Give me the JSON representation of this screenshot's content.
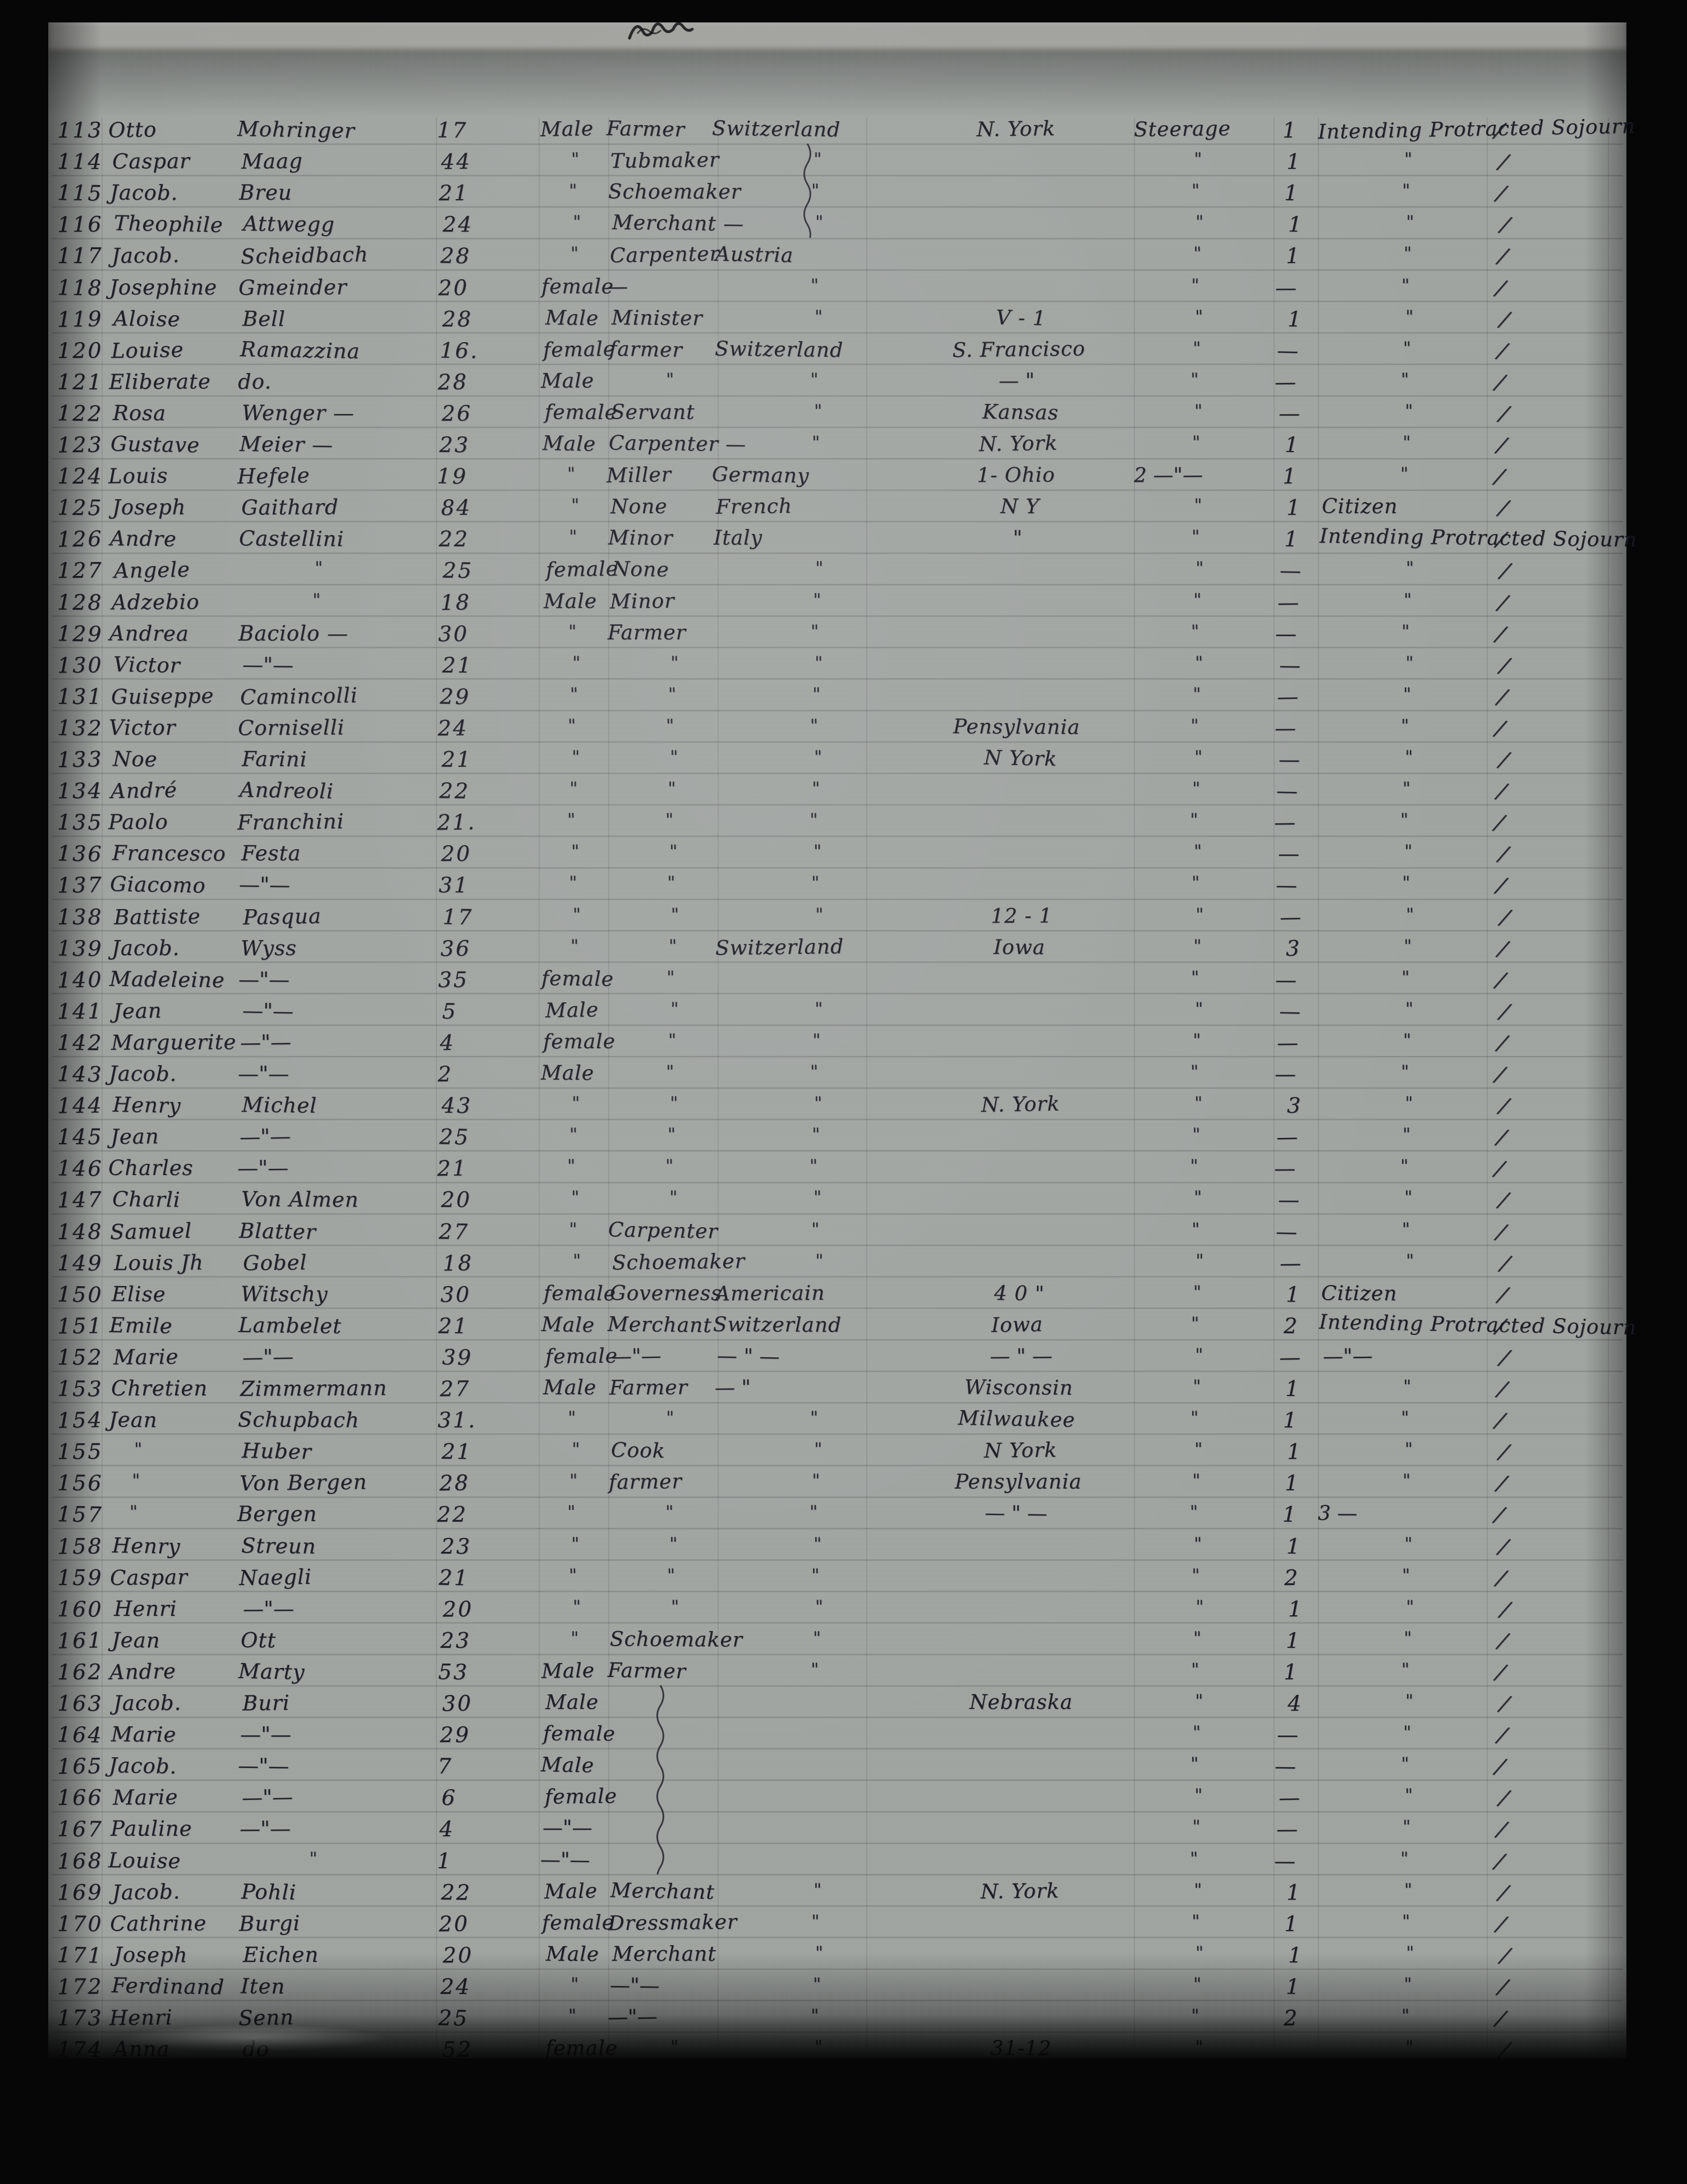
{
  "colors": {
    "ink": "#23232a",
    "paper": "#a0a5a2",
    "film": "#060607",
    "edge_strip": "#e8e9e3"
  },
  "manifest": {
    "note_bottom": "31-12",
    "braces": [
      {
        "from": 114,
        "to": 116
      },
      {
        "from": 163,
        "to": 168
      }
    ],
    "rows": [
      {
        "no": "113",
        "given": "Otto",
        "surname": "Mohringer",
        "age": "17",
        "sex": "Male",
        "occ": "Farmer",
        "country": "Switzerland",
        "dest": "N. York",
        "cls": "Steerage",
        "cnt": "1",
        "remark": "Intending Protracted Sojourn",
        "tick": true
      },
      {
        "no": "114",
        "given": "Caspar",
        "surname": "Maag",
        "age": "44",
        "sex": "\"",
        "occ": "Tubmaker",
        "country": "\"",
        "dest": "",
        "cls": "\"",
        "cnt": "1",
        "remark": "\"",
        "tick": true
      },
      {
        "no": "115",
        "given": "Jacob.",
        "surname": "Breu",
        "age": "21",
        "sex": "\"",
        "occ": "Schoemaker",
        "country": "\"",
        "dest": "",
        "cls": "\"",
        "cnt": "1",
        "remark": "\"",
        "tick": true
      },
      {
        "no": "116",
        "given": "Theophile",
        "surname": "Attwegg",
        "age": "24",
        "sex": "\"",
        "occ": "Merchant —",
        "country": "\"",
        "dest": "",
        "cls": "\"",
        "cnt": "1",
        "remark": "\"",
        "tick": true
      },
      {
        "no": "117",
        "given": "Jacob.",
        "surname": "Scheidbach",
        "age": "28",
        "sex": "\"",
        "occ": "Carpenter",
        "country": "Austria",
        "dest": "",
        "cls": "\"",
        "cnt": "1",
        "remark": "\"",
        "tick": true
      },
      {
        "no": "118",
        "given": "Josephine",
        "surname": "Gmeinder",
        "age": "20",
        "sex": "female",
        "occ": "—",
        "country": "\"",
        "dest": "",
        "cls": "\"",
        "cnt": "—",
        "remark": "\"",
        "tick": true
      },
      {
        "no": "119",
        "given": "Aloise",
        "surname": "Bell",
        "age": "28",
        "sex": "Male",
        "occ": "Minister",
        "country": "\"",
        "dest": "V - 1",
        "cls": "\"",
        "cnt": "1",
        "remark": "\"",
        "tick": true
      },
      {
        "no": "120",
        "given": "Louise",
        "surname": "Ramazzina",
        "age": "16.",
        "sex": "female",
        "occ": "farmer",
        "country": "Switzerland",
        "dest": "S. Francisco",
        "cls": "\"",
        "cnt": "—",
        "remark": "\"",
        "tick": true
      },
      {
        "no": "121",
        "given": "Eliberate",
        "surname": "do.",
        "age": "28",
        "sex": "Male",
        "occ": "\"",
        "country": "\"",
        "dest": "— \"",
        "cls": "\"",
        "cnt": "—",
        "remark": "\"",
        "tick": true
      },
      {
        "no": "122",
        "given": "Rosa",
        "surname": "Wenger —",
        "age": "26",
        "sex": "female",
        "occ": "Servant",
        "country": "\"",
        "dest": "Kansas",
        "cls": "\"",
        "cnt": "—",
        "remark": "\"",
        "tick": true
      },
      {
        "no": "123",
        "given": "Gustave",
        "surname": "Meier —",
        "age": "23",
        "sex": "Male",
        "occ": "Carpenter —",
        "country": "\"",
        "dest": "N. York",
        "cls": "\"",
        "cnt": "1",
        "remark": "\"",
        "tick": true
      },
      {
        "no": "124",
        "given": "Louis",
        "surname": "Hefele",
        "age": "19",
        "sex": "\"",
        "occ": "Miller",
        "country": "Germany",
        "dest": "1- Ohio",
        "cls": "2 —\"—",
        "cnt": "1",
        "remark": "\"",
        "tick": true
      },
      {
        "no": "125",
        "given": "Joseph",
        "surname": "Gaithard",
        "age": "84",
        "sex": "\"",
        "occ": "None",
        "country": "French",
        "dest": "N Y",
        "cls": "\"",
        "cnt": "1",
        "remark": "Citizen",
        "tick": true
      },
      {
        "no": "126",
        "given": "Andre",
        "surname": "Castellini",
        "age": "22",
        "sex": "\"",
        "occ": "Minor",
        "country": "Italy",
        "dest": "\"",
        "cls": "\"",
        "cnt": "1",
        "remark": "Intending Protracted Sojourn",
        "tick": true
      },
      {
        "no": "127",
        "given": "Angele",
        "surname": "\"",
        "age": "25",
        "sex": "female",
        "occ": "None",
        "country": "\"",
        "dest": "",
        "cls": "\"",
        "cnt": "—",
        "remark": "\"",
        "tick": true
      },
      {
        "no": "128",
        "given": "Adzebio",
        "surname": "\"",
        "age": "18",
        "sex": "Male",
        "occ": "Minor",
        "country": "\"",
        "dest": "",
        "cls": "\"",
        "cnt": "—",
        "remark": "\"",
        "tick": true
      },
      {
        "no": "129",
        "given": "Andrea",
        "surname": "Baciolo —",
        "age": "30",
        "sex": "\"",
        "occ": "Farmer",
        "country": "\"",
        "dest": "",
        "cls": "\"",
        "cnt": "—",
        "remark": "\"",
        "tick": true
      },
      {
        "no": "130",
        "given": "Victor",
        "surname": "—\"—",
        "age": "21",
        "sex": "\"",
        "occ": "\"",
        "country": "\"",
        "dest": "",
        "cls": "\"",
        "cnt": "—",
        "remark": "\"",
        "tick": true
      },
      {
        "no": "131",
        "given": "Guiseppe",
        "surname": "Camincolli",
        "age": "29",
        "sex": "\"",
        "occ": "\"",
        "country": "\"",
        "dest": "",
        "cls": "\"",
        "cnt": "—",
        "remark": "\"",
        "tick": true
      },
      {
        "no": "132",
        "given": "Victor",
        "surname": "Corniselli",
        "age": "24",
        "sex": "\"",
        "occ": "\"",
        "country": "\"",
        "dest": "Pensylvania",
        "cls": "\"",
        "cnt": "—",
        "remark": "\"",
        "tick": true
      },
      {
        "no": "133",
        "given": "Noe",
        "surname": "Farini",
        "age": "21",
        "sex": "\"",
        "occ": "\"",
        "country": "\"",
        "dest": "N York",
        "cls": "\"",
        "cnt": "—",
        "remark": "\"",
        "tick": true
      },
      {
        "no": "134",
        "given": "André",
        "surname": "Andreoli",
        "age": "22",
        "sex": "\"",
        "occ": "\"",
        "country": "\"",
        "dest": "",
        "cls": "\"",
        "cnt": "—",
        "remark": "\"",
        "tick": true
      },
      {
        "no": "135",
        "given": "Paolo",
        "surname": "Franchini",
        "age": "21.",
        "sex": "\"",
        "occ": "\"",
        "country": "\"",
        "dest": "",
        "cls": "\"",
        "cnt": "—",
        "remark": "\"",
        "tick": true
      },
      {
        "no": "136",
        "given": "Francesco",
        "surname": "Festa",
        "age": "20",
        "sex": "\"",
        "occ": "\"",
        "country": "\"",
        "dest": "",
        "cls": "\"",
        "cnt": "—",
        "remark": "\"",
        "tick": true
      },
      {
        "no": "137",
        "given": "Giacomo",
        "surname": "—\"—",
        "age": "31",
        "sex": "\"",
        "occ": "\"",
        "country": "\"",
        "dest": "",
        "cls": "\"",
        "cnt": "—",
        "remark": "\"",
        "tick": true
      },
      {
        "no": "138",
        "given": "Battiste",
        "surname": "Pasqua",
        "age": "17",
        "sex": "\"",
        "occ": "\"",
        "country": "\"",
        "dest": "12 - 1",
        "cls": "\"",
        "cnt": "—",
        "remark": "\"",
        "tick": true
      },
      {
        "no": "139",
        "given": "Jacob.",
        "surname": "Wyss",
        "age": "36",
        "sex": "\"",
        "occ": "\"",
        "country": "Switzerland",
        "dest": "Iowa",
        "cls": "\"",
        "cnt": "3",
        "remark": "\"",
        "tick": true
      },
      {
        "no": "140",
        "given": "Madeleine",
        "surname": "—\"—",
        "age": "35",
        "sex": "female",
        "occ": "\"",
        "country": "",
        "dest": "",
        "cls": "\"",
        "cnt": "—",
        "remark": "\"",
        "tick": true
      },
      {
        "no": "141",
        "given": "Jean",
        "surname": "—\"—",
        "age": "5",
        "sex": "Male",
        "occ": "\"",
        "country": "\"",
        "dest": "",
        "cls": "\"",
        "cnt": "—",
        "remark": "\"",
        "tick": true
      },
      {
        "no": "142",
        "given": "Marguerite",
        "surname": "—\"—",
        "age": "4",
        "sex": "female",
        "occ": "\"",
        "country": "\"",
        "dest": "",
        "cls": "\"",
        "cnt": "—",
        "remark": "\"",
        "tick": true
      },
      {
        "no": "143",
        "given": "Jacob.",
        "surname": "—\"—",
        "age": "2",
        "sex": "Male",
        "occ": "\"",
        "country": "\"",
        "dest": "",
        "cls": "\"",
        "cnt": "—",
        "remark": "\"",
        "tick": true
      },
      {
        "no": "144",
        "given": "Henry",
        "surname": "Michel",
        "age": "43",
        "sex": "\"",
        "occ": "\"",
        "country": "\"",
        "dest": "N. York",
        "cls": "\"",
        "cnt": "3",
        "remark": "\"",
        "tick": true
      },
      {
        "no": "145",
        "given": "Jean",
        "surname": "—\"—",
        "age": "25",
        "sex": "\"",
        "occ": "\"",
        "country": "\"",
        "dest": "",
        "cls": "\"",
        "cnt": "—",
        "remark": "\"",
        "tick": true
      },
      {
        "no": "146",
        "given": "Charles",
        "surname": "—\"—",
        "age": "21",
        "sex": "\"",
        "occ": "\"",
        "country": "\"",
        "dest": "",
        "cls": "\"",
        "cnt": "—",
        "remark": "\"",
        "tick": true
      },
      {
        "no": "147",
        "given": "Charli",
        "surname": "Von Almen",
        "age": "20",
        "sex": "\"",
        "occ": "\"",
        "country": "\"",
        "dest": "",
        "cls": "\"",
        "cnt": "—",
        "remark": "\"",
        "tick": true
      },
      {
        "no": "148",
        "given": "Samuel",
        "surname": "Blatter",
        "age": "27",
        "sex": "\"",
        "occ": "Carpenter",
        "country": "\"",
        "dest": "",
        "cls": "\"",
        "cnt": "—",
        "remark": "\"",
        "tick": true
      },
      {
        "no": "149",
        "given": "Louis Jh",
        "surname": "Gobel",
        "age": "18",
        "sex": "\"",
        "occ": "Schoemaker",
        "country": "\"",
        "dest": "",
        "cls": "\"",
        "cnt": "—",
        "remark": "\"",
        "tick": true
      },
      {
        "no": "150",
        "given": "Elise",
        "surname": "Witschy",
        "age": "30",
        "sex": "female",
        "occ": "Governess",
        "country": "Americain",
        "dest": "4 0 \"",
        "cls": "\"",
        "cnt": "1",
        "remark": "Citizen",
        "tick": true
      },
      {
        "no": "151",
        "given": "Emile",
        "surname": "Lambelet",
        "age": "21",
        "sex": "Male",
        "occ": "Merchant",
        "country": "Switzerland",
        "dest": "Iowa",
        "cls": "\"",
        "cnt": "2",
        "remark": "Intending Protracted Sojourn",
        "tick": true
      },
      {
        "no": "152",
        "given": "Marie",
        "surname": "—\"—",
        "age": "39",
        "sex": "female",
        "occ": "—\"—",
        "country": "— \" —",
        "dest": "— \" —",
        "cls": "\"",
        "cnt": "—",
        "remark": "—\"—",
        "tick": true
      },
      {
        "no": "153",
        "given": "Chretien",
        "surname": "Zimmermann",
        "age": "27",
        "sex": "Male",
        "occ": "Farmer",
        "country": "— \"",
        "dest": "Wisconsin",
        "cls": "\"",
        "cnt": "1",
        "remark": "\"",
        "tick": true
      },
      {
        "no": "154",
        "given": "Jean",
        "surname": "Schupbach",
        "age": "31.",
        "sex": "\"",
        "occ": "\"",
        "country": "\"",
        "dest": "Milwaukee",
        "cls": "\"",
        "cnt": "1",
        "remark": "\"",
        "tick": true
      },
      {
        "no": "155",
        "given": "\"",
        "surname": "Huber",
        "age": "21",
        "sex": "\"",
        "occ": "Cook",
        "country": "\"",
        "dest": "N York",
        "cls": "\"",
        "cnt": "1",
        "remark": "\"",
        "tick": true
      },
      {
        "no": "156",
        "given": "\"",
        "surname": "Von Bergen",
        "age": "28",
        "sex": "\"",
        "occ": "farmer",
        "country": "\"",
        "dest": "Pensylvania",
        "cls": "\"",
        "cnt": "1",
        "remark": "\"",
        "tick": true
      },
      {
        "no": "157",
        "given": "\"",
        "surname": "Bergen",
        "age": "22",
        "sex": "\"",
        "occ": "\"",
        "country": "\"",
        "dest": "— \" —",
        "cls": "\"",
        "cnt": "1",
        "remark": "3 —",
        "tick": true
      },
      {
        "no": "158",
        "given": "Henry",
        "surname": "Streun",
        "age": "23",
        "sex": "\"",
        "occ": "\"",
        "country": "\"",
        "dest": "",
        "cls": "\"",
        "cnt": "1",
        "remark": "\"",
        "tick": true
      },
      {
        "no": "159",
        "given": "Caspar",
        "surname": "Naegli",
        "age": "21",
        "sex": "\"",
        "occ": "\"",
        "country": "\"",
        "dest": "",
        "cls": "\"",
        "cnt": "2",
        "remark": "\"",
        "tick": true
      },
      {
        "no": "160",
        "given": "Henri",
        "surname": "—\"—",
        "age": "20",
        "sex": "\"",
        "occ": "\"",
        "country": "\"",
        "dest": "",
        "cls": "\"",
        "cnt": "1",
        "remark": "\"",
        "tick": true
      },
      {
        "no": "161",
        "given": "Jean",
        "surname": "Ott",
        "age": "23",
        "sex": "\"",
        "occ": "Schoemaker",
        "country": "\"",
        "dest": "",
        "cls": "\"",
        "cnt": "1",
        "remark": "\"",
        "tick": true
      },
      {
        "no": "162",
        "given": "Andre",
        "surname": "Marty",
        "age": "53",
        "sex": "Male",
        "occ": "Farmer",
        "country": "\"",
        "dest": "",
        "cls": "\"",
        "cnt": "1",
        "remark": "\"",
        "tick": true
      },
      {
        "no": "163",
        "given": "Jacob.",
        "surname": "Buri",
        "age": "30",
        "sex": "Male",
        "occ": "",
        "country": "",
        "dest": "Nebraska",
        "cls": "\"",
        "cnt": "4",
        "remark": "\"",
        "tick": true
      },
      {
        "no": "164",
        "given": "Marie",
        "surname": "—\"—",
        "age": "29",
        "sex": "female",
        "occ": "",
        "country": "",
        "dest": "",
        "cls": "\"",
        "cnt": "—",
        "remark": "\"",
        "tick": true
      },
      {
        "no": "165",
        "given": "Jacob.",
        "surname": "—\"—",
        "age": "7",
        "sex": "Male",
        "occ": "",
        "country": "",
        "dest": "",
        "cls": "\"",
        "cnt": "—",
        "remark": "\"",
        "tick": true
      },
      {
        "no": "166",
        "given": "Marie",
        "surname": "—\"—",
        "age": "6",
        "sex": "female",
        "occ": "",
        "country": "",
        "dest": "",
        "cls": "\"",
        "cnt": "—",
        "remark": "\"",
        "tick": true
      },
      {
        "no": "167",
        "given": "Pauline",
        "surname": "—\"—",
        "age": "4",
        "sex": "—\"—",
        "occ": "",
        "country": "",
        "dest": "",
        "cls": "\"",
        "cnt": "—",
        "remark": "\"",
        "tick": true
      },
      {
        "no": "168",
        "given": "Louise",
        "surname": "\"",
        "age": "1",
        "sex": "—\"—",
        "occ": "",
        "country": "",
        "dest": "",
        "cls": "\"",
        "cnt": "—",
        "remark": "\"",
        "tick": true
      },
      {
        "no": "169",
        "given": "Jacob.",
        "surname": "Pohli",
        "age": "22",
        "sex": "Male",
        "occ": "Merchant",
        "country": "\"",
        "dest": "N. York",
        "cls": "\"",
        "cnt": "1",
        "remark": "\"",
        "tick": true
      },
      {
        "no": "170",
        "given": "Cathrine",
        "surname": "Burgi",
        "age": "20",
        "sex": "female",
        "occ": "Dressmaker",
        "country": "\"",
        "dest": "",
        "cls": "\"",
        "cnt": "1",
        "remark": "\"",
        "tick": true
      },
      {
        "no": "171",
        "given": "Joseph",
        "surname": "Eichen",
        "age": "20",
        "sex": "Male",
        "occ": "Merchant",
        "country": "\"",
        "dest": "",
        "cls": "\"",
        "cnt": "1",
        "remark": "\"",
        "tick": true
      },
      {
        "no": "172",
        "given": "Ferdinand",
        "surname": "Iten",
        "age": "24",
        "sex": "\"",
        "occ": "—\"—",
        "country": "\"",
        "dest": "",
        "cls": "\"",
        "cnt": "1",
        "remark": "\"",
        "tick": true
      },
      {
        "no": "173",
        "given": "Henri",
        "surname": "Senn",
        "age": "25",
        "sex": "\"",
        "occ": "—\"—",
        "country": "\"",
        "dest": "",
        "cls": "\"",
        "cnt": "2",
        "remark": "\"",
        "tick": true
      },
      {
        "no": "174",
        "given": "Anna",
        "surname": "do",
        "age": "52",
        "sex": "female",
        "occ": "\"",
        "country": "\"",
        "dest": "31-12",
        "cls": "\"",
        "cnt": "",
        "remark": "\"",
        "tick": true
      }
    ]
  }
}
